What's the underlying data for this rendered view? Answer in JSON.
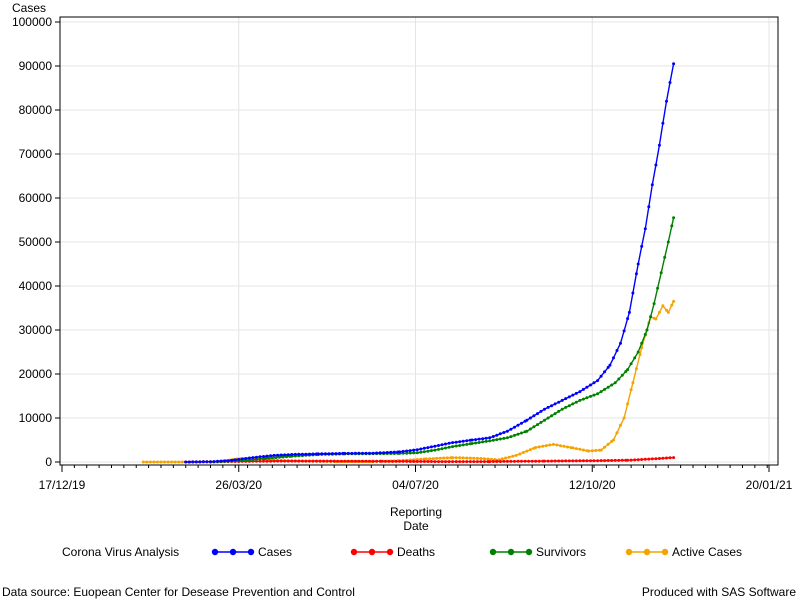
{
  "chart_data": {
    "type": "line",
    "ylabel": "Cases",
    "xlabel_line1": "Reporting",
    "xlabel_line2": "Date",
    "ylim": [
      0,
      100000
    ],
    "yticks": [
      0,
      10000,
      20000,
      30000,
      40000,
      50000,
      60000,
      70000,
      80000,
      90000,
      100000
    ],
    "xlim": [
      "2019-12-17",
      "2021-01-20"
    ],
    "xticks": [
      {
        "date": "2019-12-17",
        "label": "17/12/19"
      },
      {
        "date": "2020-03-26",
        "label": "26/03/20"
      },
      {
        "date": "2020-07-04",
        "label": "04/07/20"
      },
      {
        "date": "2020-10-12",
        "label": "12/10/20"
      },
      {
        "date": "2021-01-20",
        "label": "20/01/21"
      }
    ],
    "grid": true,
    "legend_position": "bottom",
    "legend_title": "Corona Virus Analysis",
    "series": [
      {
        "name": "Cases",
        "color": "#0000ff",
        "points": [
          [
            "2020-02-25",
            0
          ],
          [
            "2020-03-10",
            50
          ],
          [
            "2020-03-20",
            300
          ],
          [
            "2020-03-28",
            700
          ],
          [
            "2020-04-05",
            1100
          ],
          [
            "2020-04-15",
            1500
          ],
          [
            "2020-04-25",
            1700
          ],
          [
            "2020-05-10",
            1850
          ],
          [
            "2020-05-25",
            1950
          ],
          [
            "2020-06-10",
            2000
          ],
          [
            "2020-06-25",
            2300
          ],
          [
            "2020-07-05",
            2800
          ],
          [
            "2020-07-15",
            3600
          ],
          [
            "2020-07-25",
            4400
          ],
          [
            "2020-08-05",
            5000
          ],
          [
            "2020-08-15",
            5500
          ],
          [
            "2020-08-25",
            7000
          ],
          [
            "2020-09-05",
            9500
          ],
          [
            "2020-09-15",
            12000
          ],
          [
            "2020-09-25",
            14000
          ],
          [
            "2020-10-05",
            16000
          ],
          [
            "2020-10-15",
            18500
          ],
          [
            "2020-10-22",
            22000
          ],
          [
            "2020-10-28",
            27000
          ],
          [
            "2020-11-02",
            34000
          ],
          [
            "2020-11-07",
            45000
          ],
          [
            "2020-11-11",
            53000
          ],
          [
            "2020-11-15",
            63000
          ],
          [
            "2020-11-19",
            72000
          ],
          [
            "2020-11-23",
            82000
          ],
          [
            "2020-11-27",
            90500
          ]
        ]
      },
      {
        "name": "Deaths",
        "color": "#ff0000",
        "points": [
          [
            "2020-02-25",
            0
          ],
          [
            "2020-03-20",
            100
          ],
          [
            "2020-04-15",
            200
          ],
          [
            "2020-05-15",
            200
          ],
          [
            "2020-06-15",
            150
          ],
          [
            "2020-07-15",
            100
          ],
          [
            "2020-08-15",
            100
          ],
          [
            "2020-09-15",
            200
          ],
          [
            "2020-10-15",
            300
          ],
          [
            "2020-11-01",
            400
          ],
          [
            "2020-11-15",
            700
          ],
          [
            "2020-11-27",
            1000
          ]
        ]
      },
      {
        "name": "Survivors",
        "color": "#008000",
        "points": [
          [
            "2020-03-10",
            0
          ],
          [
            "2020-03-28",
            300
          ],
          [
            "2020-04-10",
            800
          ],
          [
            "2020-04-25",
            1300
          ],
          [
            "2020-05-10",
            1700
          ],
          [
            "2020-05-25",
            1850
          ],
          [
            "2020-06-10",
            1900
          ],
          [
            "2020-06-25",
            1950
          ],
          [
            "2020-07-05",
            2100
          ],
          [
            "2020-07-15",
            2700
          ],
          [
            "2020-07-25",
            3500
          ],
          [
            "2020-08-05",
            4200
          ],
          [
            "2020-08-15",
            4800
          ],
          [
            "2020-08-25",
            5500
          ],
          [
            "2020-09-05",
            7000
          ],
          [
            "2020-09-15",
            9500
          ],
          [
            "2020-09-25",
            12000
          ],
          [
            "2020-10-05",
            14000
          ],
          [
            "2020-10-15",
            15500
          ],
          [
            "2020-10-25",
            18000
          ],
          [
            "2020-11-01",
            21000
          ],
          [
            "2020-11-07",
            25000
          ],
          [
            "2020-11-12",
            30000
          ],
          [
            "2020-11-16",
            36000
          ],
          [
            "2020-11-20",
            43000
          ],
          [
            "2020-11-24",
            50000
          ],
          [
            "2020-11-27",
            55500
          ]
        ]
      },
      {
        "name": "Active Cases",
        "color": "#f4a300",
        "points": [
          [
            "2020-02-01",
            0
          ],
          [
            "2020-02-25",
            0
          ],
          [
            "2020-03-15",
            100
          ],
          [
            "2020-03-25",
            700
          ],
          [
            "2020-04-05",
            800
          ],
          [
            "2020-04-15",
            400
          ],
          [
            "2020-05-01",
            200
          ],
          [
            "2020-05-20",
            100
          ],
          [
            "2020-06-10",
            100
          ],
          [
            "2020-06-25",
            300
          ],
          [
            "2020-07-10",
            700
          ],
          [
            "2020-07-25",
            1000
          ],
          [
            "2020-08-10",
            800
          ],
          [
            "2020-08-20",
            500
          ],
          [
            "2020-08-30",
            1500
          ],
          [
            "2020-09-10",
            3300
          ],
          [
            "2020-09-20",
            4000
          ],
          [
            "2020-10-01",
            3200
          ],
          [
            "2020-10-10",
            2500
          ],
          [
            "2020-10-17",
            2700
          ],
          [
            "2020-10-24",
            5000
          ],
          [
            "2020-10-30",
            10000
          ],
          [
            "2020-11-04",
            18000
          ],
          [
            "2020-11-09",
            26000
          ],
          [
            "2020-11-14",
            33000
          ],
          [
            "2020-11-17",
            32500
          ],
          [
            "2020-11-21",
            35500
          ],
          [
            "2020-11-24",
            34000
          ],
          [
            "2020-11-27",
            36500
          ]
        ]
      }
    ]
  },
  "footer": {
    "source": "Data source: Euopean Center for Desease Prevention and Control",
    "credit": "Produced with SAS Software"
  }
}
